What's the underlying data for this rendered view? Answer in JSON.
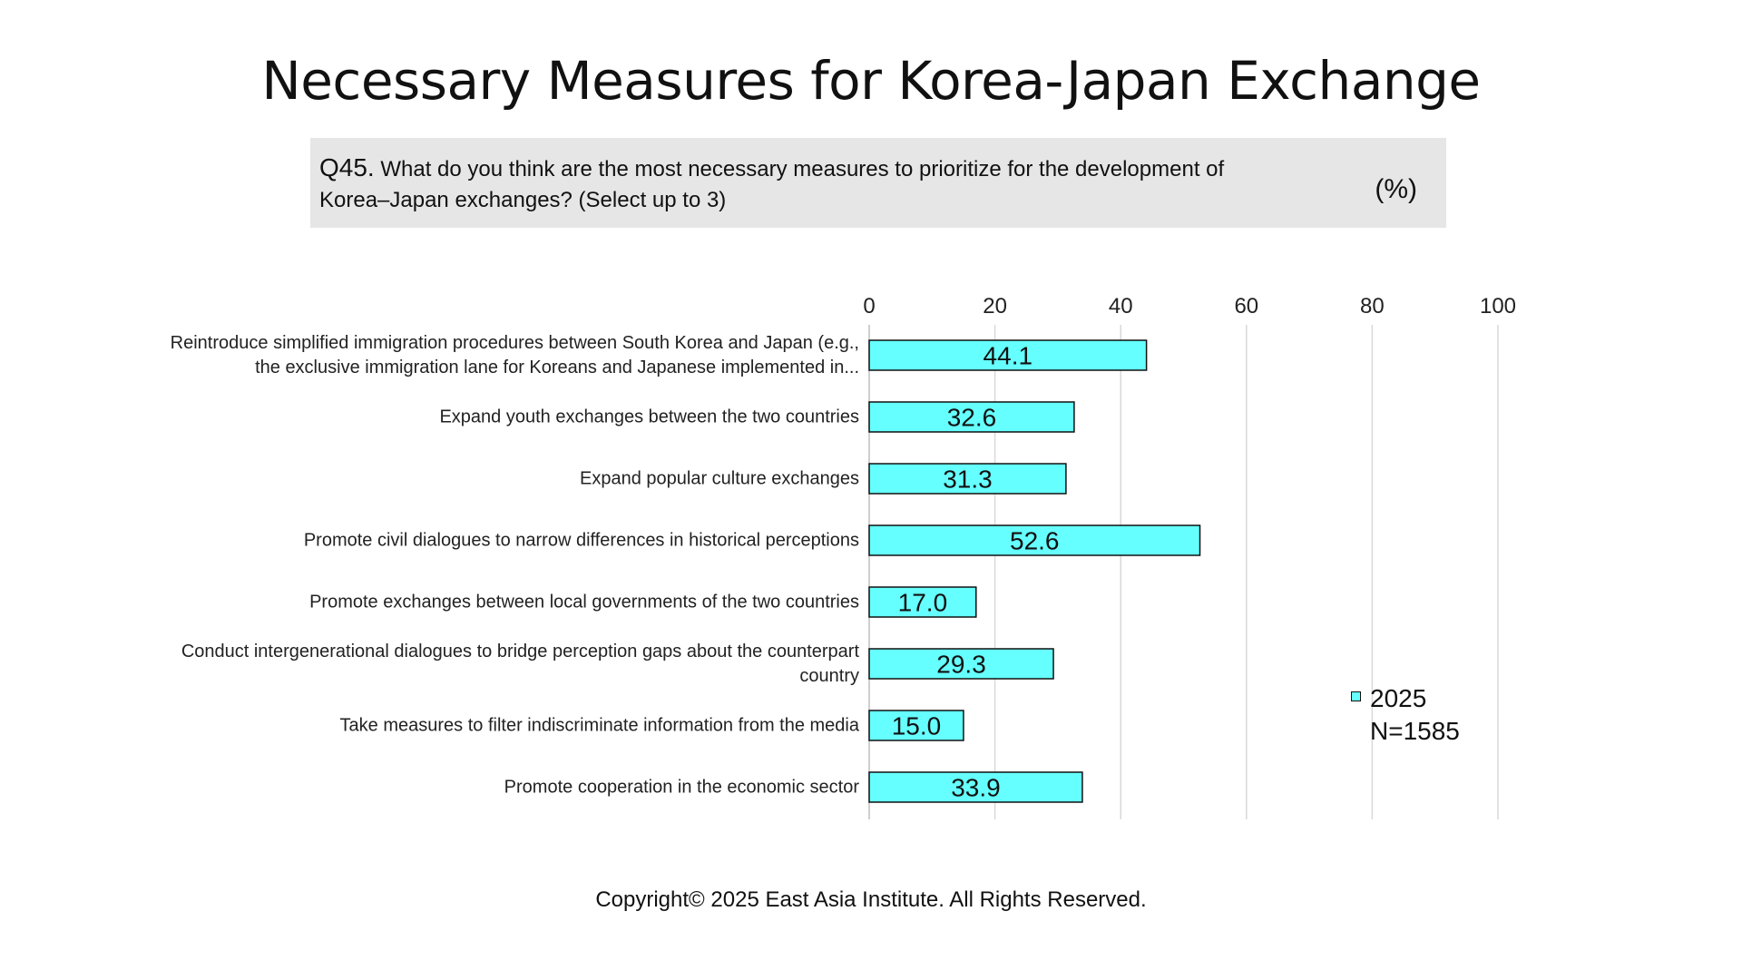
{
  "title": "Necessary Measures for Korea-Japan Exchange",
  "question": {
    "number": "Q45.",
    "text": "What do you think are the most necessary measures to prioritize for the development of Korea–Japan exchanges? (Select up to 3)",
    "unit": "(%)"
  },
  "chart_data": {
    "type": "bar",
    "orientation": "horizontal",
    "categories": [
      "Reintroduce simplified immigration procedures between South Korea and Japan (e.g., the exclusive immigration lane for Koreans and Japanese implemented in...",
      "Expand youth exchanges between the two countries",
      "Expand popular culture exchanges",
      "Promote civil dialogues to narrow differences in historical perceptions",
      "Promote exchanges between local governments of the two countries",
      "Conduct intergenerational dialogues to bridge perception gaps about the counterpart country",
      "Take measures to filter indiscriminate information from the media",
      "Promote cooperation in the economic sector"
    ],
    "series": [
      {
        "name": "2025",
        "values": [
          44.1,
          32.6,
          31.3,
          52.6,
          17.0,
          29.3,
          15.0,
          33.9
        ],
        "labels": [
          "44.1",
          "32.6",
          "31.3",
          "52.6",
          "17.0",
          "29.3",
          "15.0",
          "33.9"
        ],
        "color": "#66ffff"
      }
    ],
    "xlim": [
      0,
      100
    ],
    "xticks": [
      "0",
      "20",
      "40",
      "60",
      "80",
      "100"
    ],
    "grid": true,
    "legend_position": "right"
  },
  "legend": {
    "year": "2025",
    "sample": "N=1585"
  },
  "copyright": "Copyright© 2025 East Asia Institute. All Rights Reserved."
}
